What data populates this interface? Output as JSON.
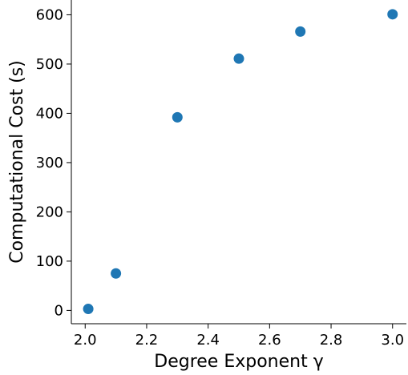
{
  "chart_data": {
    "type": "scatter",
    "title": "",
    "xlabel": "Degree Exponent γ",
    "ylabel": "Computational Cost (s)",
    "x": [
      2.01,
      2.1,
      2.3,
      2.5,
      2.7,
      3.0
    ],
    "y": [
      3,
      75,
      392,
      511,
      566,
      601
    ],
    "xlim": [
      1.955,
      3.045
    ],
    "ylim": [
      -27,
      630
    ],
    "xticks": [
      2.0,
      2.2,
      2.4,
      2.6,
      2.8,
      3.0
    ],
    "xtick_labels": [
      "2.0",
      "2.2",
      "2.4",
      "2.6",
      "2.8",
      "3.0"
    ],
    "yticks": [
      0,
      100,
      200,
      300,
      400,
      500,
      600
    ],
    "ytick_labels": [
      "0",
      "100",
      "200",
      "300",
      "400",
      "500",
      "600"
    ],
    "grid": false,
    "legend": "none",
    "marker_color": "#1f77b4",
    "spines": "left-bottom"
  }
}
